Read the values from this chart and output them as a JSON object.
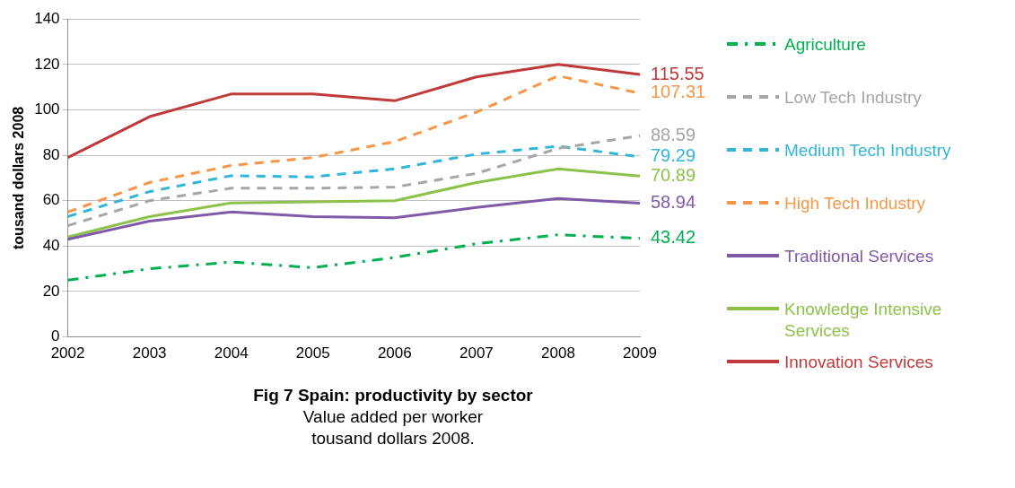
{
  "chart_data": {
    "type": "line",
    "title": "Fig 7 Spain: productivity by sector",
    "subtitle": "Value added per worker\ntousand dollars 2008.",
    "ylabel": "tousand dollars 2008",
    "categories": [
      "2002",
      "2003",
      "2004",
      "2005",
      "2006",
      "2007",
      "2008",
      "2009"
    ],
    "ylim": [
      0,
      140
    ],
    "yticks": [
      0,
      20,
      40,
      60,
      80,
      100,
      120,
      140
    ],
    "grid": "y",
    "legend": "right",
    "marker": "none",
    "series": [
      {
        "name": "Agriculture",
        "color": "#00b050",
        "line_style": "dashdot",
        "values": [
          25,
          30,
          33,
          30.5,
          35,
          41,
          45,
          43.42
        ],
        "value_labels": [
          null,
          null,
          null,
          null,
          null,
          null,
          null,
          "43.42"
        ]
      },
      {
        "name": "Low Tech Industry",
        "color": "#a6a6a6",
        "line_style": "dashed",
        "values": [
          49,
          60,
          65.5,
          65.5,
          66,
          72,
          83,
          88.59
        ],
        "value_labels": [
          null,
          null,
          null,
          null,
          null,
          null,
          null,
          "88.59"
        ]
      },
      {
        "name": "Medium Tech Industry",
        "color": "#31b5d8",
        "line_style": "dashed",
        "values": [
          53,
          64,
          71,
          70.5,
          74,
          80.5,
          84,
          79.29
        ],
        "value_labels": [
          null,
          null,
          null,
          null,
          null,
          null,
          null,
          "79.29"
        ]
      },
      {
        "name": "High Tech Industry",
        "color": "#f79646",
        "line_style": "dashed",
        "values": [
          55,
          68,
          75.5,
          79,
          86,
          99,
          115,
          107.31
        ],
        "value_labels": [
          null,
          null,
          null,
          null,
          null,
          null,
          null,
          "107.31"
        ]
      },
      {
        "name": "Traditional Services",
        "color": "#7f5aa8",
        "line_style": "solid",
        "values": [
          43,
          51,
          55,
          53,
          52.5,
          57,
          61,
          58.94
        ],
        "value_labels": [
          null,
          null,
          null,
          null,
          null,
          null,
          null,
          "58.94"
        ]
      },
      {
        "name": "Knowledge Intensive Services",
        "color": "#8dc24a",
        "line_style": "solid",
        "values": [
          44,
          53,
          59,
          59.5,
          60,
          68,
          74,
          70.89
        ],
        "value_labels": [
          null,
          null,
          null,
          null,
          null,
          null,
          null,
          "70.89"
        ]
      },
      {
        "name": "Innovation Services",
        "color": "#c0393b",
        "line_style": "solid",
        "values": [
          79,
          97,
          107,
          107,
          104,
          114.5,
          120,
          115.55
        ],
        "value_labels": [
          null,
          null,
          null,
          null,
          null,
          null,
          null,
          "115.55"
        ]
      }
    ]
  }
}
